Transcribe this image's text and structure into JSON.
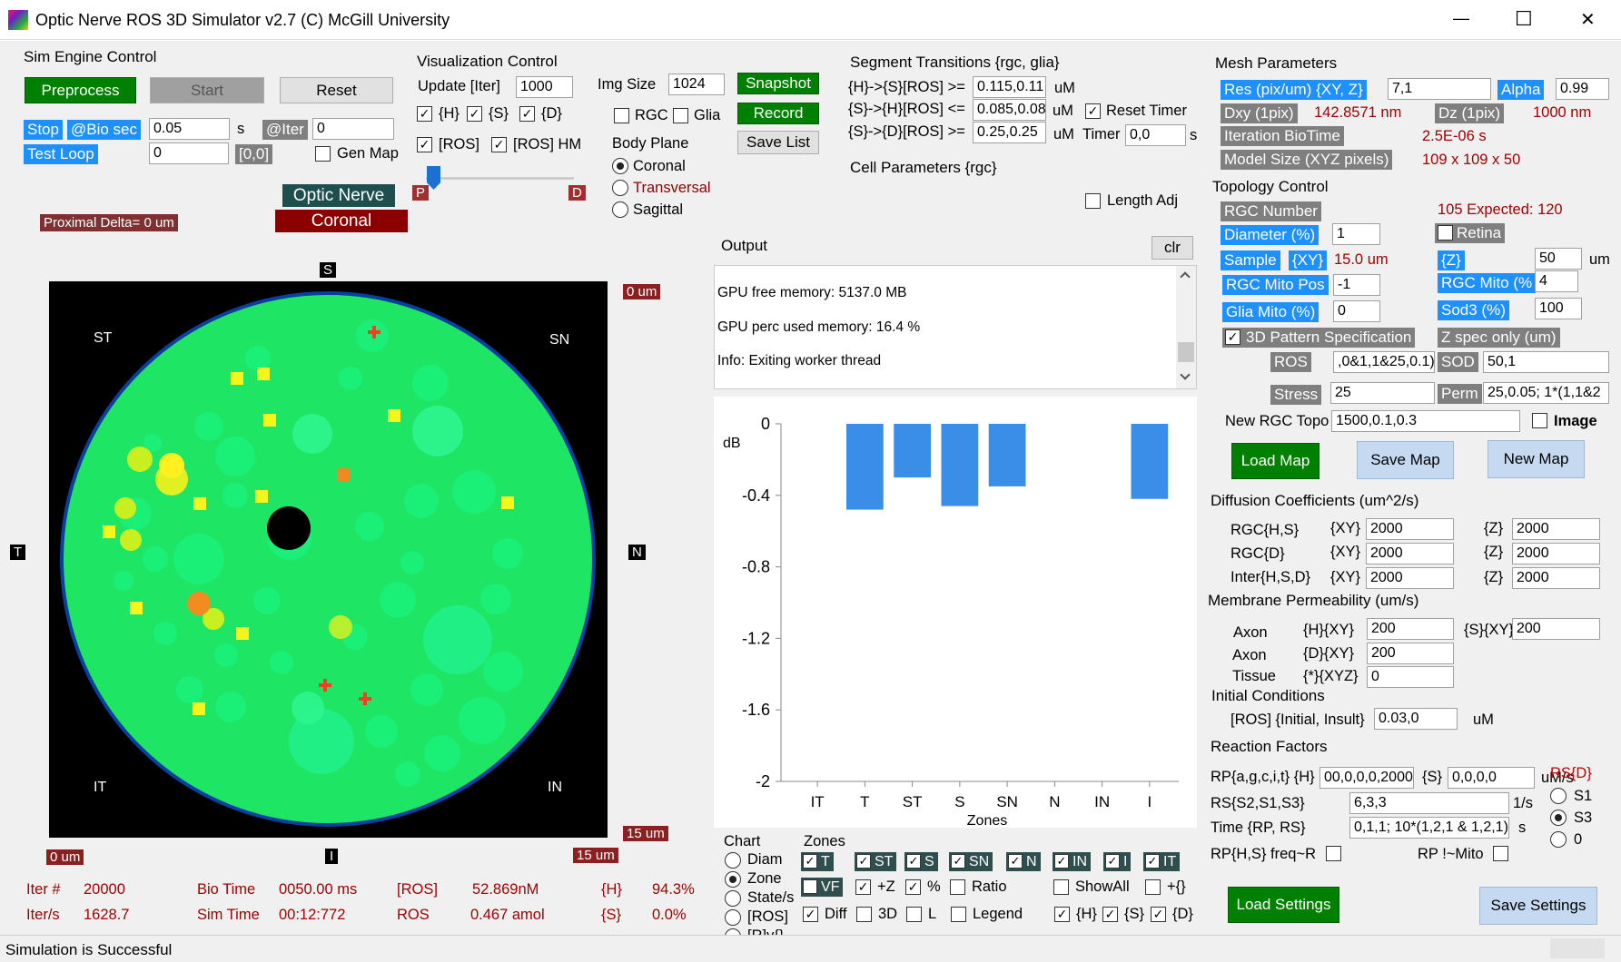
{
  "window": {
    "title": "Optic Nerve ROS 3D Simulator v2.7 (C) McGill University",
    "minimize_glyph": "—",
    "maximize_glyph": "☐",
    "close_glyph": "✕"
  },
  "sim_engine": {
    "title": "Sim Engine Control",
    "preprocess": "Preprocess",
    "start": "Start",
    "reset": "Reset",
    "stop_label": "Stop",
    "bio_sec_label": "@Bio sec",
    "bio_sec_value": "0.05",
    "s_unit": "s",
    "iter_label": "@Iter",
    "iter_value": "0",
    "test_loop_label": "Test Loop",
    "test_loop_value": "0",
    "coord": "[0,0]",
    "gen_map": "Gen Map"
  },
  "badges": {
    "optic_nerve": "Optic Nerve",
    "coronal": "Coronal",
    "proximal_delta": "Proximal Delta= 0 um"
  },
  "viz": {
    "title": "Visualization Control",
    "update_label": "Update [Iter]",
    "update_value": "1000",
    "img_size_label": "Img Size",
    "img_size_value": "1024",
    "snapshot": "Snapshot",
    "record": "Record",
    "save_list": "Save List",
    "h": "{H}",
    "s": "{S}",
    "d": "{D}",
    "ros": "[ROS]",
    "ros_hm": "[ROS] HM",
    "rgc": "RGC",
    "glia": "Glia",
    "slider_p": "P",
    "slider_d": "D",
    "body_plane": "Body Plane",
    "coronal": "Coronal",
    "transversal": "Transversal",
    "sagittal": "Sagittal"
  },
  "segment": {
    "title": "Segment Transitions {rgc, glia}",
    "row1_label": "{H}->{S}[ROS] >=",
    "row1_value": "0.115,0.11",
    "row2_label": "{S}->{H}[ROS] <=",
    "row2_value": "0.085,0.08",
    "row3_label": "{S}->{D}[ROS] >=",
    "row3_value": "0.25,0.25",
    "um": "uM",
    "reset_timer": "Reset Timer",
    "timer_label": "Timer",
    "timer_value": "0,0",
    "s_unit": "s",
    "cell_params": "Cell Parameters {rgc}",
    "length_adj": "Length Adj"
  },
  "output": {
    "title": "Output",
    "clr": "clr",
    "lines": [
      "GPU free memory: 5137.0 MB",
      "GPU perc used memory: 16.4 %",
      "Info: Exiting worker thread"
    ]
  },
  "map": {
    "S": "S",
    "I": "I",
    "T": "T",
    "N": "N",
    "ST": "ST",
    "SN": "SN",
    "IT": "IT",
    "IN": "IN",
    "top_right": "0 um",
    "bottom_right": "15 um",
    "bottom_left": "0 um",
    "bottom_mid": "15 um"
  },
  "stats": {
    "iter_label": "Iter #",
    "iter_value": "20000",
    "iters_label": "Iter/s",
    "iters_value": "1628.7",
    "bio_time_label": "Bio Time",
    "bio_time_value": "0050.00 ms",
    "sim_time_label": "Sim Time",
    "sim_time_value": "00:12:772",
    "ros_conc_label": "[ROS]",
    "ros_conc_value": "52.869nM",
    "ros_label": "ROS",
    "ros_value": "0.467 amol",
    "h_label": "{H}",
    "h_value": "94.3%",
    "s_label": "{S}",
    "s_value": "0.0%"
  },
  "chart_data": {
    "type": "bar",
    "categories": [
      "IT",
      "T",
      "ST",
      "S",
      "SN",
      "N",
      "IN",
      "I"
    ],
    "values": [
      0,
      -0.48,
      -0.3,
      -0.46,
      -0.35,
      0,
      0,
      -0.42
    ],
    "xlabel": "Zones",
    "ylabel": "dB",
    "ylim": [
      -2,
      0
    ],
    "yticks": [
      "0",
      "-0.4",
      "-0.8",
      "-1.2",
      "-1.6",
      "-2"
    ],
    "bar_color": "#3b8ee8"
  },
  "chart_ctrl": {
    "chart_title": "Chart",
    "diam": "Diam",
    "zone": "Zone",
    "states": "State/s",
    "ros": "[ROS]",
    "rv": "[R]v{}",
    "zones_title": "Zones",
    "z_T": "T",
    "z_ST": "ST",
    "z_S": "S",
    "z_SN": "SN",
    "z_N": "N",
    "z_IN": "IN",
    "z_I": "I",
    "z_IT": "IT",
    "vf": "VF",
    "plus_z": "+Z",
    "pct": "%",
    "ratio": "Ratio",
    "show_all": "ShowAll",
    "plus_braces": "+{}",
    "diff": "Diff",
    "d3": "3D",
    "l": "L",
    "legend": "Legend",
    "h": "{H}",
    "s": "{S}",
    "d": "{D}"
  },
  "mesh": {
    "title": "Mesh Parameters",
    "res_label": "Res (pix/um) {XY, Z}",
    "res_value": "7,1",
    "alpha_label": "Alpha",
    "alpha_value": "0.99",
    "dxy_label": "Dxy (1pix)",
    "dxy_value": "142.8571 nm",
    "dz_label": "Dz (1pix)",
    "dz_value": "1000 nm",
    "iter_bio_label": "Iteration BioTime",
    "iter_bio_value": "2.5E-06 s",
    "model_size_label": "Model Size (XYZ pixels)",
    "model_size_value": "109 x 109 x 50"
  },
  "topology": {
    "title": "Topology Control",
    "rgc_number_label": "RGC Number",
    "rgc_number_value": "105 Expected: 120",
    "diameter_label": "Diameter (%)",
    "diameter_value": "1",
    "retina": "Retina",
    "sample_label": "Sample",
    "sample_xy": "{XY}",
    "sample_value": "15.0 um",
    "z_label": "{Z}",
    "z_value": "50",
    "um": "um",
    "rgc_mito_pos_label": "RGC Mito Pos",
    "rgc_mito_pos_value": "-1",
    "rgc_mito_label": "RGC Mito (%",
    "rgc_mito_value": "4",
    "glia_mito_label": "Glia Mito (%)",
    "glia_mito_value": "0",
    "sod3_label": "Sod3 (%)",
    "sod3_value": "100",
    "pattern_spec": "3D Pattern Specification",
    "z_spec": "Z spec only (um)",
    "ros_label": "ROS",
    "ros_value": ",0&1,1&25,0.1)",
    "sod_label": "SOD",
    "sod_value": "50,1",
    "stress_label": "Stress",
    "stress_value": "25",
    "perm_label": "Perm",
    "perm_value": "25,0.05; 1*(1,1&2",
    "new_topo_label": "New RGC Topo",
    "new_topo_value": "1500,0.1,0.3",
    "image": "Image",
    "load_map": "Load Map",
    "save_map": "Save Map",
    "new_map": "New Map"
  },
  "diffusion": {
    "title": "Diffusion Coefficients (um^2/s)",
    "rows": [
      {
        "label": "RGC{H,S}",
        "xy": "2000",
        "z": "2000"
      },
      {
        "label": "RGC{D}",
        "xy": "2000",
        "z": "2000"
      },
      {
        "label": "Inter{H,S,D}",
        "xy": "2000",
        "z": "2000"
      }
    ],
    "xy_tag": "{XY}",
    "z_tag": "{Z}"
  },
  "membrane": {
    "title": "Membrane Permeability (um/s)",
    "axon1_label": "Axon",
    "axon1_tag": "{H}{XY}",
    "axon1_value": "200",
    "axon1_s_tag": "{S}{XY}",
    "axon1_s_value": "200",
    "axon2_label": "Axon",
    "axon2_tag": "{D}{XY}",
    "axon2_value": "200",
    "tissue_label": "Tissue",
    "tissue_tag": "{*}{XYZ}",
    "tissue_value": "0"
  },
  "initial": {
    "title": "Initial Conditions",
    "label": "[ROS] {Initial, Insult}",
    "value": "0.03,0",
    "unit": "uM"
  },
  "reaction": {
    "title": "Reaction Factors",
    "rp_label": "RP{a,g,c,i,t} {H}",
    "rp_value": "00,0,0,0,2000",
    "rp_s_tag": "{S}",
    "rp_s_value": "0,0,0,0",
    "rp_unit": "uM/s",
    "rs_label": "RS{S2,S1,S3}",
    "rs_value": "6,3,3",
    "rs_unit": "1/s",
    "time_label": "Time {RP, RS}",
    "time_value": "0,1,1; 10*(1,2,1 & 1,2,1)",
    "time_unit": "s",
    "rp_freq": "RP{H,S} freq~R",
    "rp_mito": "RP !~Mito",
    "rsd_title": "RS{D}",
    "s1": "S1",
    "s3": "S3",
    "zero": "0",
    "load_settings": "Load Settings",
    "save_settings": "Save Settings"
  },
  "status": {
    "text": "Simulation is Successful"
  }
}
